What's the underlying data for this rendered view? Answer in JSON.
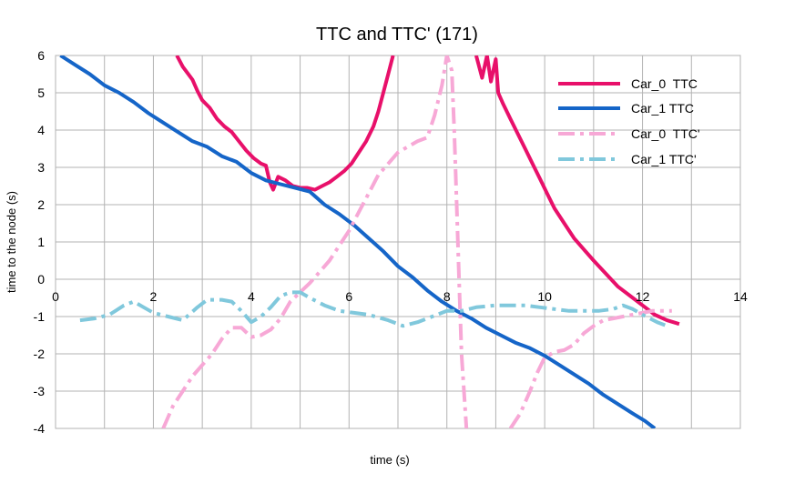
{
  "chart_data": {
    "type": "line",
    "title": "TTC and TTC' (171)",
    "xlabel": "time (s)",
    "ylabel": "time to the node (s)",
    "xlim": [
      0,
      14
    ],
    "ylim": [
      -4,
      6
    ],
    "xticks": [
      0,
      2,
      4,
      6,
      8,
      10,
      12,
      14
    ],
    "yticks": [
      -4,
      -3,
      -2,
      -1,
      0,
      1,
      2,
      3,
      4,
      5,
      6
    ],
    "grid": true,
    "legend_position": "top-right",
    "series": [
      {
        "name": "Car_0  TTC",
        "color": "#e8106a",
        "dash": "solid",
        "points": [
          [
            2.48,
            6.0
          ],
          [
            2.6,
            5.7
          ],
          [
            2.8,
            5.35
          ],
          [
            2.9,
            5.05
          ],
          [
            3.0,
            4.8
          ],
          [
            3.15,
            4.6
          ],
          [
            3.3,
            4.3
          ],
          [
            3.45,
            4.1
          ],
          [
            3.6,
            3.95
          ],
          [
            3.75,
            3.7
          ],
          [
            3.9,
            3.45
          ],
          [
            4.05,
            3.25
          ],
          [
            4.2,
            3.1
          ],
          [
            4.3,
            3.05
          ],
          [
            4.38,
            2.6
          ],
          [
            4.45,
            2.4
          ],
          [
            4.55,
            2.75
          ],
          [
            4.7,
            2.65
          ],
          [
            4.85,
            2.5
          ],
          [
            5.0,
            2.45
          ],
          [
            5.15,
            2.45
          ],
          [
            5.3,
            2.4
          ],
          [
            5.45,
            2.5
          ],
          [
            5.6,
            2.6
          ],
          [
            5.75,
            2.75
          ],
          [
            5.9,
            2.9
          ],
          [
            6.05,
            3.1
          ],
          [
            6.2,
            3.4
          ],
          [
            6.35,
            3.7
          ],
          [
            6.5,
            4.1
          ],
          [
            6.6,
            4.5
          ],
          [
            6.7,
            5.0
          ],
          [
            6.8,
            5.5
          ],
          [
            6.9,
            6.0
          ]
        ],
        "points_b": [
          [
            8.6,
            6.0
          ],
          [
            8.72,
            5.4
          ],
          [
            8.82,
            6.0
          ],
          [
            8.9,
            5.3
          ],
          [
            9.0,
            5.9
          ],
          [
            9.05,
            5.0
          ],
          [
            9.15,
            4.7
          ],
          [
            9.3,
            4.3
          ],
          [
            9.45,
            3.9
          ],
          [
            9.6,
            3.5
          ],
          [
            9.75,
            3.1
          ],
          [
            9.9,
            2.7
          ],
          [
            10.05,
            2.3
          ],
          [
            10.2,
            1.9
          ],
          [
            10.4,
            1.5
          ],
          [
            10.6,
            1.1
          ],
          [
            10.8,
            0.8
          ],
          [
            11.0,
            0.5
          ],
          [
            11.25,
            0.15
          ],
          [
            11.5,
            -0.2
          ],
          [
            11.75,
            -0.45
          ],
          [
            12.0,
            -0.7
          ],
          [
            12.25,
            -0.95
          ],
          [
            12.5,
            -1.1
          ],
          [
            12.75,
            -1.2
          ]
        ]
      },
      {
        "name": "Car_1 TTC",
        "color": "#1565c8",
        "dash": "solid",
        "points": [
          [
            0.1,
            6.0
          ],
          [
            0.4,
            5.75
          ],
          [
            0.7,
            5.5
          ],
          [
            1.0,
            5.2
          ],
          [
            1.3,
            5.0
          ],
          [
            1.6,
            4.75
          ],
          [
            1.9,
            4.45
          ],
          [
            2.2,
            4.2
          ],
          [
            2.5,
            3.95
          ],
          [
            2.8,
            3.7
          ],
          [
            3.1,
            3.55
          ],
          [
            3.4,
            3.3
          ],
          [
            3.7,
            3.15
          ],
          [
            4.0,
            2.85
          ],
          [
            4.3,
            2.65
          ],
          [
            4.6,
            2.55
          ],
          [
            4.9,
            2.45
          ],
          [
            5.2,
            2.35
          ],
          [
            5.5,
            2.0
          ],
          [
            5.8,
            1.75
          ],
          [
            6.1,
            1.45
          ],
          [
            6.4,
            1.1
          ],
          [
            6.7,
            0.75
          ],
          [
            7.0,
            0.35
          ],
          [
            7.3,
            0.05
          ],
          [
            7.6,
            -0.3
          ],
          [
            7.9,
            -0.6
          ],
          [
            8.2,
            -0.85
          ],
          [
            8.5,
            -1.05
          ],
          [
            8.8,
            -1.3
          ],
          [
            9.1,
            -1.5
          ],
          [
            9.4,
            -1.7
          ],
          [
            9.7,
            -1.85
          ],
          [
            10.0,
            -2.05
          ],
          [
            10.3,
            -2.3
          ],
          [
            10.6,
            -2.55
          ],
          [
            10.9,
            -2.8
          ],
          [
            11.2,
            -3.1
          ],
          [
            11.5,
            -3.35
          ],
          [
            11.8,
            -3.6
          ],
          [
            12.05,
            -3.8
          ],
          [
            12.25,
            -4.0
          ]
        ]
      },
      {
        "name": "Car_0  TTC'",
        "color": "#f7a8d6",
        "dash": "dashdot",
        "points": [
          [
            2.2,
            -4.0
          ],
          [
            2.4,
            -3.4
          ],
          [
            2.6,
            -3.0
          ],
          [
            2.8,
            -2.6
          ],
          [
            3.0,
            -2.3
          ],
          [
            3.2,
            -2.0
          ],
          [
            3.4,
            -1.6
          ],
          [
            3.6,
            -1.3
          ],
          [
            3.8,
            -1.3
          ],
          [
            4.0,
            -1.55
          ],
          [
            4.2,
            -1.5
          ],
          [
            4.4,
            -1.35
          ],
          [
            4.6,
            -1.05
          ],
          [
            4.8,
            -0.6
          ],
          [
            5.0,
            -0.35
          ],
          [
            5.2,
            -0.1
          ],
          [
            5.4,
            0.2
          ],
          [
            5.6,
            0.5
          ],
          [
            5.8,
            0.9
          ],
          [
            6.0,
            1.3
          ],
          [
            6.2,
            1.8
          ],
          [
            6.4,
            2.3
          ],
          [
            6.6,
            2.8
          ],
          [
            6.8,
            3.1
          ],
          [
            7.0,
            3.4
          ],
          [
            7.2,
            3.55
          ],
          [
            7.4,
            3.7
          ],
          [
            7.6,
            3.8
          ],
          [
            7.75,
            4.4
          ],
          [
            7.9,
            5.2
          ],
          [
            8.0,
            6.0
          ],
          [
            8.1,
            5.6
          ],
          [
            8.15,
            4.0
          ],
          [
            8.2,
            2.0
          ],
          [
            8.25,
            0.0
          ],
          [
            8.3,
            -2.0
          ],
          [
            8.4,
            -4.0
          ]
        ],
        "points_b": [
          [
            9.3,
            -4.0
          ],
          [
            9.5,
            -3.6
          ],
          [
            9.7,
            -3.0
          ],
          [
            9.85,
            -2.5
          ],
          [
            10.0,
            -2.1
          ],
          [
            10.2,
            -1.95
          ],
          [
            10.4,
            -1.9
          ],
          [
            10.6,
            -1.75
          ],
          [
            10.8,
            -1.45
          ],
          [
            11.0,
            -1.25
          ],
          [
            11.2,
            -1.1
          ],
          [
            11.4,
            -1.05
          ],
          [
            11.6,
            -1.0
          ],
          [
            11.8,
            -0.95
          ],
          [
            12.0,
            -0.9
          ],
          [
            12.2,
            -0.85
          ],
          [
            12.4,
            -0.85
          ],
          [
            12.6,
            -0.85
          ]
        ]
      },
      {
        "name": "Car_1 TTC'",
        "color": "#80c8dc",
        "dash": "dashdot",
        "points": [
          [
            0.5,
            -1.1
          ],
          [
            0.8,
            -1.05
          ],
          [
            1.1,
            -0.95
          ],
          [
            1.4,
            -0.7
          ],
          [
            1.6,
            -0.6
          ],
          [
            1.8,
            -0.75
          ],
          [
            2.0,
            -0.9
          ],
          [
            2.3,
            -1.0
          ],
          [
            2.6,
            -1.1
          ],
          [
            2.9,
            -0.75
          ],
          [
            3.1,
            -0.55
          ],
          [
            3.4,
            -0.55
          ],
          [
            3.6,
            -0.6
          ],
          [
            3.8,
            -0.85
          ],
          [
            4.0,
            -1.15
          ],
          [
            4.2,
            -1.0
          ],
          [
            4.4,
            -0.75
          ],
          [
            4.6,
            -0.45
          ],
          [
            4.8,
            -0.35
          ],
          [
            5.0,
            -0.35
          ],
          [
            5.2,
            -0.5
          ],
          [
            5.5,
            -0.7
          ],
          [
            5.8,
            -0.85
          ],
          [
            6.1,
            -0.9
          ],
          [
            6.4,
            -0.95
          ],
          [
            6.8,
            -1.1
          ],
          [
            7.1,
            -1.25
          ],
          [
            7.4,
            -1.15
          ],
          [
            7.7,
            -1.0
          ],
          [
            8.0,
            -0.85
          ],
          [
            8.3,
            -0.85
          ],
          [
            8.6,
            -0.75
          ],
          [
            9.0,
            -0.7
          ],
          [
            9.3,
            -0.7
          ],
          [
            9.6,
            -0.7
          ],
          [
            9.9,
            -0.75
          ],
          [
            10.2,
            -0.8
          ],
          [
            10.5,
            -0.85
          ],
          [
            10.8,
            -0.85
          ],
          [
            11.1,
            -0.85
          ],
          [
            11.4,
            -0.8
          ],
          [
            11.6,
            -0.7
          ],
          [
            11.8,
            -0.8
          ],
          [
            12.0,
            -0.95
          ],
          [
            12.3,
            -1.15
          ],
          [
            12.5,
            -1.25
          ]
        ]
      }
    ]
  }
}
